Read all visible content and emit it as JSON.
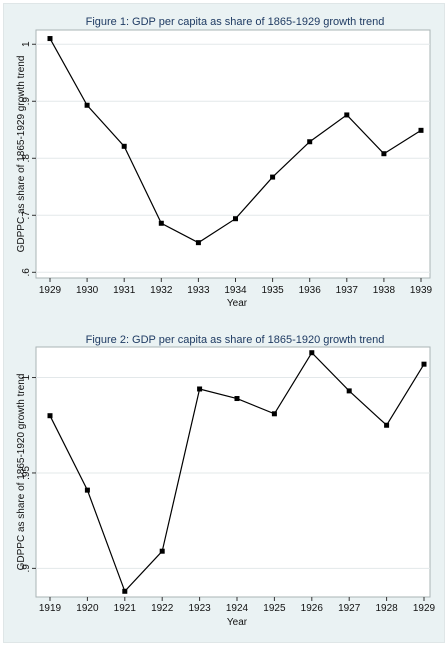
{
  "chart_data": [
    {
      "type": "line",
      "title": "Figure 1: GDP per capita as share of 1865-1929 growth trend",
      "xlabel": "Year",
      "ylabel": "GDPPC as share of 1865-1929 growth trend",
      "x": [
        1929,
        1930,
        1931,
        1932,
        1933,
        1934,
        1935,
        1936,
        1937,
        1938,
        1939
      ],
      "series": [
        {
          "values": [
            1.01,
            0.893,
            0.821,
            0.686,
            0.652,
            0.694,
            0.767,
            0.829,
            0.876,
            0.808,
            0.849
          ]
        }
      ],
      "xticks": [
        "1929",
        "1930",
        "1931",
        "1932",
        "1933",
        "1934",
        "1935",
        "1936",
        "1937",
        "1938",
        "1939"
      ],
      "yticks": [
        {
          "value": 0.6,
          "label": ".6"
        },
        {
          "value": 0.7,
          "label": ".7"
        },
        {
          "value": 0.8,
          "label": ".8"
        },
        {
          "value": 0.9,
          "label": ".9"
        },
        {
          "value": 1.0,
          "label": "1"
        }
      ],
      "ylim": [
        0.59,
        1.025
      ],
      "grid": true,
      "marker_color": "#000000",
      "line_color": "#000000"
    },
    {
      "type": "line",
      "title": "Figure 2: GDP per capita as share of 1865-1920 growth trend",
      "xlabel": "Year",
      "ylabel": "GDPPC as share of 1865-1920 growth trend",
      "x": [
        1919,
        1920,
        1921,
        1922,
        1923,
        1924,
        1925,
        1926,
        1927,
        1928,
        1929
      ],
      "series": [
        {
          "values": [
            0.98,
            0.941,
            0.888,
            0.909,
            0.994,
            0.989,
            0.981,
            1.013,
            0.993,
            0.975,
            1.007
          ]
        }
      ],
      "xticks": [
        "1919",
        "1920",
        "1921",
        "1922",
        "1923",
        "1924",
        "1925",
        "1926",
        "1927",
        "1928",
        "1929"
      ],
      "yticks": [
        {
          "value": 0.9,
          "label": ".9"
        },
        {
          "value": 0.95,
          "label": ".95"
        },
        {
          "value": 1.0,
          "label": "1"
        }
      ],
      "ylim": [
        0.885,
        1.016
      ],
      "grid": true,
      "marker_color": "#000000",
      "line_color": "#000000"
    }
  ]
}
